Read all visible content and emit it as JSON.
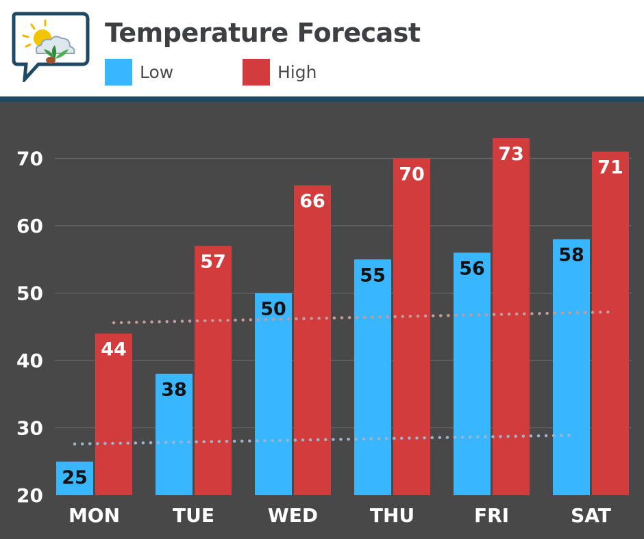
{
  "header": {
    "title": "Temperature Forecast",
    "legend": [
      {
        "label": "Low",
        "color": "#38b6ff"
      },
      {
        "label": "High",
        "color": "#d23c3c"
      }
    ]
  },
  "chart_data": {
    "type": "bar",
    "title": "Temperature Forecast",
    "categories": [
      "MON",
      "TUE",
      "WED",
      "THU",
      "FRI",
      "SAT"
    ],
    "series": [
      {
        "name": "Low",
        "color": "#38b6ff",
        "label_color": "#111111",
        "values": [
          25,
          38,
          50,
          55,
          56,
          58
        ]
      },
      {
        "name": "High",
        "color": "#d23c3c",
        "label_color": "#ffffff",
        "values": [
          44,
          57,
          66,
          70,
          73,
          71
        ]
      }
    ],
    "trendlines": [
      {
        "series": "Low",
        "color": "#9fb3c8",
        "start": 27.6,
        "end": 28.9
      },
      {
        "series": "High",
        "color": "#c49a9a",
        "start": 45.6,
        "end": 47.2
      }
    ],
    "yticks": [
      20,
      30,
      40,
      50,
      60,
      70
    ],
    "ylim": [
      20,
      80
    ],
    "xlabel": "",
    "ylabel": "",
    "grid": true,
    "legend": "top-left"
  }
}
